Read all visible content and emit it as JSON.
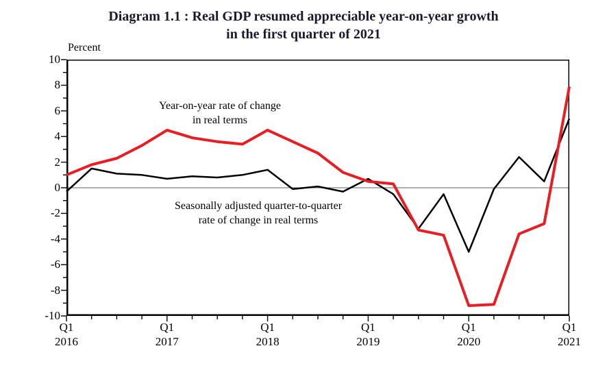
{
  "title": {
    "line1": "Diagram 1.1 : Real GDP resumed appreciable year-on-year growth",
    "line2": "in the first quarter of 2021"
  },
  "annotations": [
    {
      "lines": [
        "Year-on-year rate of change",
        "in real terms"
      ]
    },
    {
      "lines": [
        "Seasonally adjusted quarter-to-quarter",
        "rate of change in real terms"
      ]
    }
  ],
  "chart_data": {
    "type": "line",
    "ylabel": "Percent",
    "ylim": [
      -10,
      10
    ],
    "y_ticks": [
      10,
      8,
      6,
      4,
      2,
      0,
      -2,
      -4,
      -6,
      -8,
      -10
    ],
    "y_minor_step": 1,
    "x_count": 21,
    "x_quarters": [
      "2016Q1",
      "2016Q2",
      "2016Q3",
      "2016Q4",
      "2017Q1",
      "2017Q2",
      "2017Q3",
      "2017Q4",
      "2018Q1",
      "2018Q2",
      "2018Q3",
      "2018Q4",
      "2019Q1",
      "2019Q2",
      "2019Q3",
      "2019Q4",
      "2020Q1",
      "2020Q2",
      "2020Q3",
      "2020Q4",
      "2021Q1"
    ],
    "x_labels": [
      {
        "idx": 0,
        "quarter": "Q1",
        "year": "2016"
      },
      {
        "idx": 4,
        "quarter": "Q1",
        "year": "2017"
      },
      {
        "idx": 8,
        "quarter": "Q1",
        "year": "2018"
      },
      {
        "idx": 12,
        "quarter": "Q1",
        "year": "2019"
      },
      {
        "idx": 16,
        "quarter": "Q1",
        "year": "2020"
      },
      {
        "idx": 20,
        "quarter": "Q1",
        "year": "2021"
      }
    ],
    "zero_line": true,
    "grid": false,
    "legend_position": "inline-annotations",
    "series": [
      {
        "name": "Year-on-year rate of change in real terms",
        "color": "#e81e24",
        "stroke_width": 4,
        "values": [
          1.0,
          1.8,
          2.3,
          3.3,
          4.5,
          3.9,
          3.6,
          3.4,
          4.5,
          3.6,
          2.7,
          1.2,
          0.5,
          0.3,
          -3.3,
          -3.7,
          -9.2,
          -9.1,
          -3.6,
          -2.8,
          7.9
        ]
      },
      {
        "name": "Seasonally adjusted quarter-to-quarter rate of change in real terms",
        "color": "#000000",
        "stroke_width": 2.5,
        "values": [
          -0.3,
          1.5,
          1.1,
          1.0,
          0.7,
          0.9,
          0.8,
          1.0,
          1.4,
          -0.1,
          0.1,
          -0.3,
          0.7,
          -0.5,
          -3.2,
          -0.5,
          -5.0,
          -0.1,
          2.4,
          0.5,
          5.4
        ]
      }
    ],
    "colors": {
      "zero_line": "#7f7f7f",
      "axis": "#000000",
      "title": "#1a1a2e"
    }
  }
}
